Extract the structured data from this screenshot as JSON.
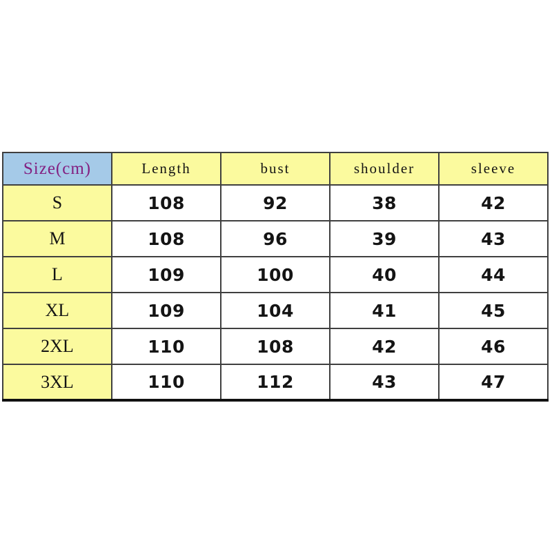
{
  "size_chart": {
    "corner_header": "Size(cm)",
    "measurement_headers": [
      "Length",
      "bust",
      "shoulder",
      "sleeve"
    ],
    "rows": [
      {
        "size": "S",
        "length": "108",
        "bust": "92",
        "shoulder": "38",
        "sleeve": "42"
      },
      {
        "size": "M",
        "length": "108",
        "bust": "96",
        "shoulder": "39",
        "sleeve": "43"
      },
      {
        "size": "L",
        "length": "109",
        "bust": "100",
        "shoulder": "40",
        "sleeve": "44"
      },
      {
        "size": "XL",
        "length": "109",
        "bust": "104",
        "shoulder": "41",
        "sleeve": "45"
      },
      {
        "size": "2XL",
        "length": "110",
        "bust": "108",
        "shoulder": "42",
        "sleeve": "46"
      },
      {
        "size": "3XL",
        "length": "110",
        "bust": "112",
        "shoulder": "43",
        "sleeve": "47"
      }
    ],
    "colors": {
      "corner_blue": "#a5cae8",
      "cell_yellow": "#fbfa9e",
      "corner_text": "#832081",
      "grid_line": "#3f3f3f",
      "bottom_line": "#111111"
    }
  },
  "chart_data": {
    "type": "table",
    "title": "Size(cm)",
    "columns": [
      "Size(cm)",
      "Length",
      "bust",
      "shoulder",
      "sleeve"
    ],
    "rows": [
      [
        "S",
        108,
        92,
        38,
        42
      ],
      [
        "M",
        108,
        96,
        39,
        43
      ],
      [
        "L",
        109,
        100,
        40,
        44
      ],
      [
        "XL",
        109,
        104,
        41,
        45
      ],
      [
        "2XL",
        110,
        108,
        42,
        46
      ],
      [
        "3XL",
        110,
        112,
        43,
        47
      ]
    ]
  }
}
